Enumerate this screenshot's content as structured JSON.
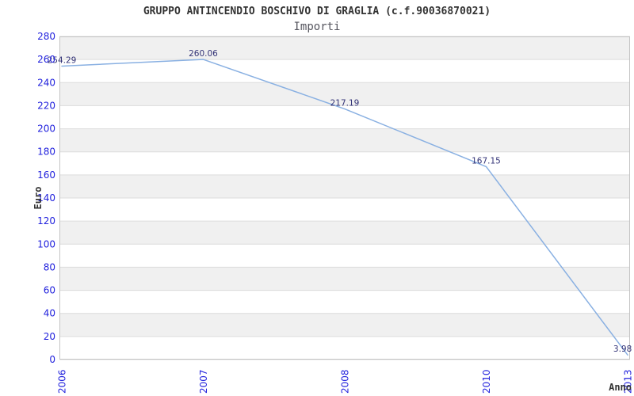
{
  "header": {
    "title": "GRUPPO ANTINCENDIO BOSCHIVO DI GRAGLIA (c.f.90036870021)",
    "subtitle": "Importi"
  },
  "chart_data": {
    "type": "line",
    "title": "GRUPPO ANTINCENDIO BOSCHIVO DI GRAGLIA (c.f.90036870021)",
    "subtitle": "Importi",
    "xlabel": "Anno",
    "ylabel": "Euro",
    "categories": [
      "2006",
      "2007",
      "2008",
      "2010",
      "2013"
    ],
    "series": [
      {
        "name": "Importi",
        "values": [
          254.29,
          260.06,
          217.19,
          167.15,
          3.98
        ],
        "point_labels": [
          "254.29",
          "260.06",
          "217.19",
          "167.15",
          "3.98"
        ]
      }
    ],
    "ylim": [
      0,
      280
    ],
    "ytick_step": 20,
    "yticks": [
      0,
      20,
      40,
      60,
      80,
      100,
      120,
      140,
      160,
      180,
      200,
      220,
      240,
      260,
      280
    ],
    "grid": "horizontal-gridlines-with-alternating-bands",
    "legend_position": "none",
    "colors": {
      "line": "#89b0e2",
      "tick_label": "#2222dd",
      "point_label": "#333377",
      "axis_title": "#333333",
      "band": "#f0f0f0",
      "gridline": "#dcdcdc",
      "plot_border": "#c4c4c4",
      "background": "#ffffff"
    }
  }
}
